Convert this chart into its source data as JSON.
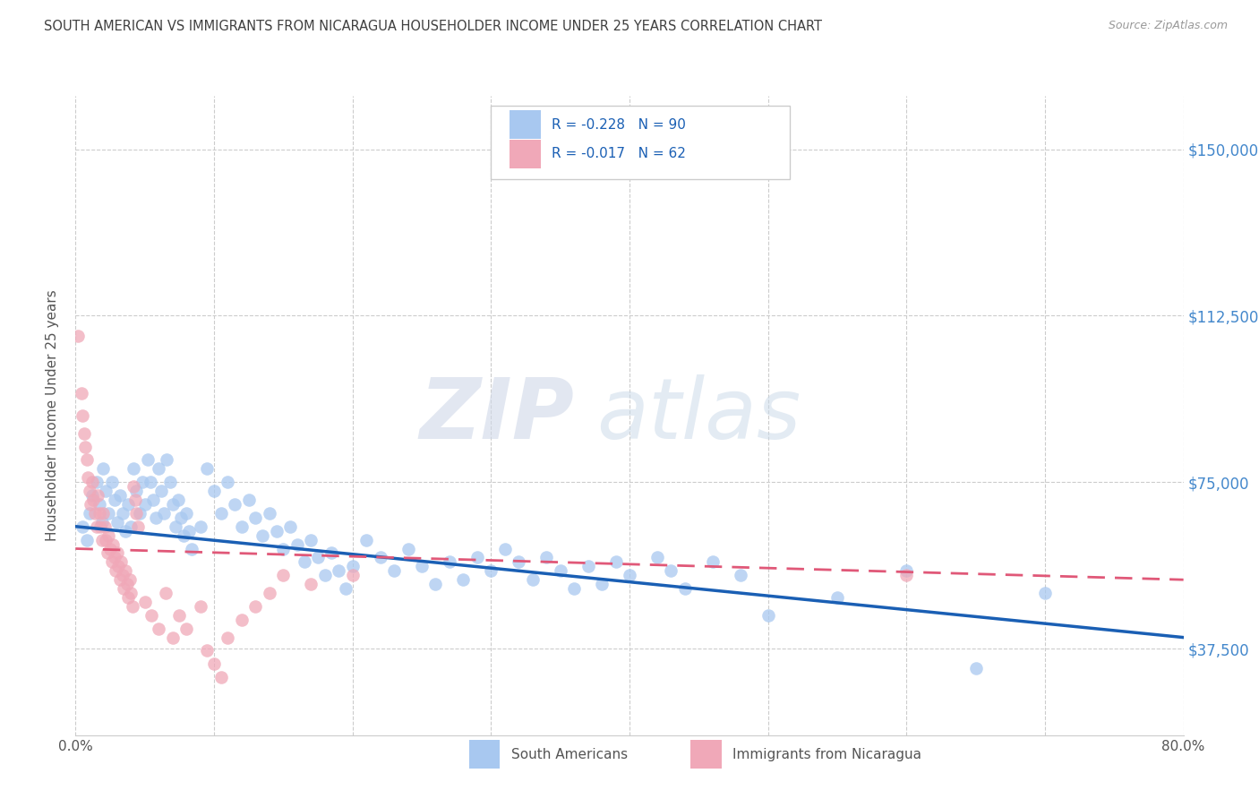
{
  "title": "SOUTH AMERICAN VS IMMIGRANTS FROM NICARAGUA HOUSEHOLDER INCOME UNDER 25 YEARS CORRELATION CHART",
  "source": "Source: ZipAtlas.com",
  "ylabel": "Householder Income Under 25 years",
  "y_ticks": [
    37500,
    75000,
    112500,
    150000
  ],
  "y_tick_labels": [
    "$37,500",
    "$75,000",
    "$112,500",
    "$150,000"
  ],
  "x_min": 0.0,
  "x_max": 0.8,
  "y_min": 18000,
  "y_max": 162000,
  "legend_label_blue": "South Americans",
  "legend_label_pink": "Immigrants from Nicaragua",
  "watermark_zip": "ZIP",
  "watermark_atlas": "atlas",
  "blue_color": "#a8c8f0",
  "pink_color": "#f0a8b8",
  "blue_line_color": "#1a5fb4",
  "pink_line_color": "#e05878",
  "right_axis_color": "#4488cc",
  "blue_line_y0": 65000,
  "blue_line_y1": 40000,
  "pink_line_y0": 60000,
  "pink_line_y1": 53000,
  "blue_scatter": [
    [
      0.005,
      65000
    ],
    [
      0.008,
      62000
    ],
    [
      0.01,
      68000
    ],
    [
      0.012,
      72000
    ],
    [
      0.015,
      75000
    ],
    [
      0.017,
      70000
    ],
    [
      0.019,
      66000
    ],
    [
      0.02,
      78000
    ],
    [
      0.022,
      73000
    ],
    [
      0.024,
      68000
    ],
    [
      0.026,
      75000
    ],
    [
      0.028,
      71000
    ],
    [
      0.03,
      66000
    ],
    [
      0.032,
      72000
    ],
    [
      0.034,
      68000
    ],
    [
      0.036,
      64000
    ],
    [
      0.038,
      70000
    ],
    [
      0.04,
      65000
    ],
    [
      0.042,
      78000
    ],
    [
      0.044,
      73000
    ],
    [
      0.046,
      68000
    ],
    [
      0.048,
      75000
    ],
    [
      0.05,
      70000
    ],
    [
      0.052,
      80000
    ],
    [
      0.054,
      75000
    ],
    [
      0.056,
      71000
    ],
    [
      0.058,
      67000
    ],
    [
      0.06,
      78000
    ],
    [
      0.062,
      73000
    ],
    [
      0.064,
      68000
    ],
    [
      0.066,
      80000
    ],
    [
      0.068,
      75000
    ],
    [
      0.07,
      70000
    ],
    [
      0.072,
      65000
    ],
    [
      0.074,
      71000
    ],
    [
      0.076,
      67000
    ],
    [
      0.078,
      63000
    ],
    [
      0.08,
      68000
    ],
    [
      0.082,
      64000
    ],
    [
      0.084,
      60000
    ],
    [
      0.09,
      65000
    ],
    [
      0.095,
      78000
    ],
    [
      0.1,
      73000
    ],
    [
      0.105,
      68000
    ],
    [
      0.11,
      75000
    ],
    [
      0.115,
      70000
    ],
    [
      0.12,
      65000
    ],
    [
      0.125,
      71000
    ],
    [
      0.13,
      67000
    ],
    [
      0.135,
      63000
    ],
    [
      0.14,
      68000
    ],
    [
      0.145,
      64000
    ],
    [
      0.15,
      60000
    ],
    [
      0.155,
      65000
    ],
    [
      0.16,
      61000
    ],
    [
      0.165,
      57000
    ],
    [
      0.17,
      62000
    ],
    [
      0.175,
      58000
    ],
    [
      0.18,
      54000
    ],
    [
      0.185,
      59000
    ],
    [
      0.19,
      55000
    ],
    [
      0.195,
      51000
    ],
    [
      0.2,
      56000
    ],
    [
      0.21,
      62000
    ],
    [
      0.22,
      58000
    ],
    [
      0.23,
      55000
    ],
    [
      0.24,
      60000
    ],
    [
      0.25,
      56000
    ],
    [
      0.26,
      52000
    ],
    [
      0.27,
      57000
    ],
    [
      0.28,
      53000
    ],
    [
      0.29,
      58000
    ],
    [
      0.3,
      55000
    ],
    [
      0.31,
      60000
    ],
    [
      0.32,
      57000
    ],
    [
      0.33,
      53000
    ],
    [
      0.34,
      58000
    ],
    [
      0.35,
      55000
    ],
    [
      0.36,
      51000
    ],
    [
      0.37,
      56000
    ],
    [
      0.38,
      52000
    ],
    [
      0.39,
      57000
    ],
    [
      0.4,
      54000
    ],
    [
      0.42,
      58000
    ],
    [
      0.43,
      55000
    ],
    [
      0.44,
      51000
    ],
    [
      0.46,
      57000
    ],
    [
      0.48,
      54000
    ],
    [
      0.5,
      45000
    ],
    [
      0.55,
      49000
    ],
    [
      0.6,
      55000
    ],
    [
      0.65,
      33000
    ],
    [
      0.7,
      50000
    ]
  ],
  "pink_scatter": [
    [
      0.002,
      108000
    ],
    [
      0.004,
      95000
    ],
    [
      0.005,
      90000
    ],
    [
      0.006,
      86000
    ],
    [
      0.007,
      83000
    ],
    [
      0.008,
      80000
    ],
    [
      0.009,
      76000
    ],
    [
      0.01,
      73000
    ],
    [
      0.011,
      70000
    ],
    [
      0.012,
      75000
    ],
    [
      0.013,
      71000
    ],
    [
      0.014,
      68000
    ],
    [
      0.015,
      65000
    ],
    [
      0.016,
      72000
    ],
    [
      0.017,
      68000
    ],
    [
      0.018,
      65000
    ],
    [
      0.019,
      62000
    ],
    [
      0.02,
      68000
    ],
    [
      0.021,
      65000
    ],
    [
      0.022,
      62000
    ],
    [
      0.023,
      59000
    ],
    [
      0.024,
      63000
    ],
    [
      0.025,
      60000
    ],
    [
      0.026,
      57000
    ],
    [
      0.027,
      61000
    ],
    [
      0.028,
      58000
    ],
    [
      0.029,
      55000
    ],
    [
      0.03,
      59000
    ],
    [
      0.031,
      56000
    ],
    [
      0.032,
      53000
    ],
    [
      0.033,
      57000
    ],
    [
      0.034,
      54000
    ],
    [
      0.035,
      51000
    ],
    [
      0.036,
      55000
    ],
    [
      0.037,
      52000
    ],
    [
      0.038,
      49000
    ],
    [
      0.039,
      53000
    ],
    [
      0.04,
      50000
    ],
    [
      0.041,
      47000
    ],
    [
      0.042,
      74000
    ],
    [
      0.043,
      71000
    ],
    [
      0.044,
      68000
    ],
    [
      0.045,
      65000
    ],
    [
      0.05,
      48000
    ],
    [
      0.055,
      45000
    ],
    [
      0.06,
      42000
    ],
    [
      0.065,
      50000
    ],
    [
      0.07,
      40000
    ],
    [
      0.075,
      45000
    ],
    [
      0.08,
      42000
    ],
    [
      0.09,
      47000
    ],
    [
      0.095,
      37000
    ],
    [
      0.1,
      34000
    ],
    [
      0.105,
      31000
    ],
    [
      0.11,
      40000
    ],
    [
      0.12,
      44000
    ],
    [
      0.13,
      47000
    ],
    [
      0.14,
      50000
    ],
    [
      0.15,
      54000
    ],
    [
      0.17,
      52000
    ],
    [
      0.2,
      54000
    ],
    [
      0.6,
      54000
    ]
  ]
}
